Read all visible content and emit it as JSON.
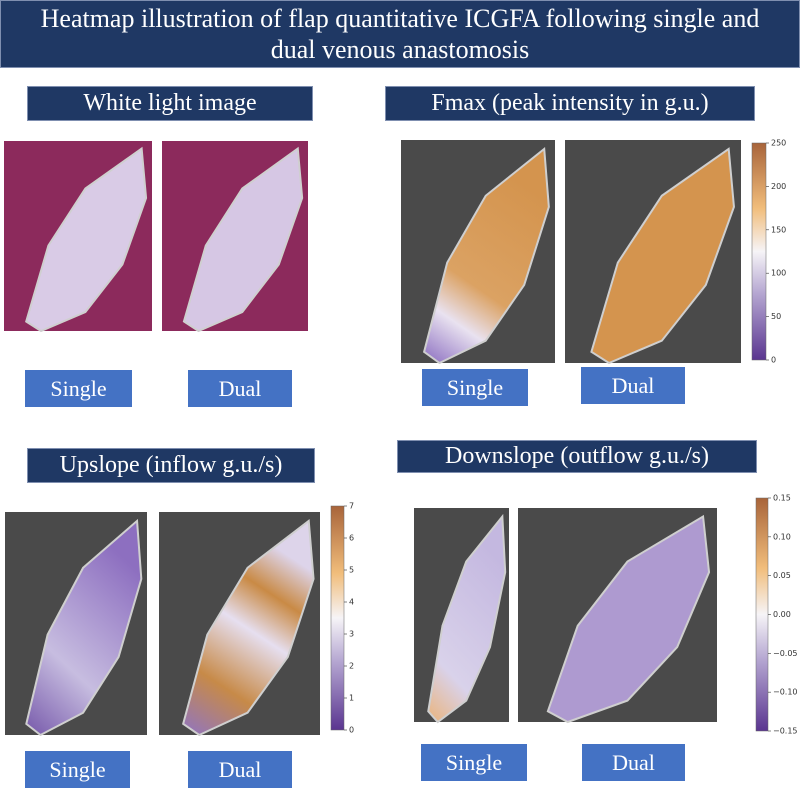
{
  "header": {
    "title": "Heatmap illustration of flap quantitative ICGFA following single and dual venous anastomosis"
  },
  "panels": [
    {
      "title": "White light image",
      "labels": [
        "Single",
        "Dual"
      ]
    },
    {
      "title": "Fmax (peak intensity in g.u.)",
      "labels": [
        "Single",
        "Dual"
      ],
      "colorbar": {
        "range": [
          0,
          250
        ],
        "ticks": [
          0,
          50,
          100,
          150,
          200,
          250
        ]
      }
    },
    {
      "title": "Upslope (inflow g.u./s)",
      "labels": [
        "Single",
        "Dual"
      ],
      "colorbar": {
        "range": [
          0,
          7
        ],
        "ticks": [
          0,
          1,
          2,
          3,
          4,
          5,
          6,
          7
        ]
      }
    },
    {
      "title": "Downslope (outflow g.u./s)",
      "labels": [
        "Single",
        "Dual"
      ],
      "colorbar": {
        "range": [
          -0.15,
          0.15
        ],
        "ticks": [
          {
            "value": -0.15,
            "label": "−0.15"
          },
          {
            "value": -0.1,
            "label": "−0.10"
          },
          {
            "value": -0.05,
            "label": "−0.05"
          },
          {
            "value": 0,
            "label": "0.00"
          },
          {
            "value": 0.05,
            "label": "0.05"
          },
          {
            "value": 0.1,
            "label": "0.10"
          },
          {
            "value": 0.15,
            "label": "0.15"
          }
        ]
      }
    }
  ]
}
